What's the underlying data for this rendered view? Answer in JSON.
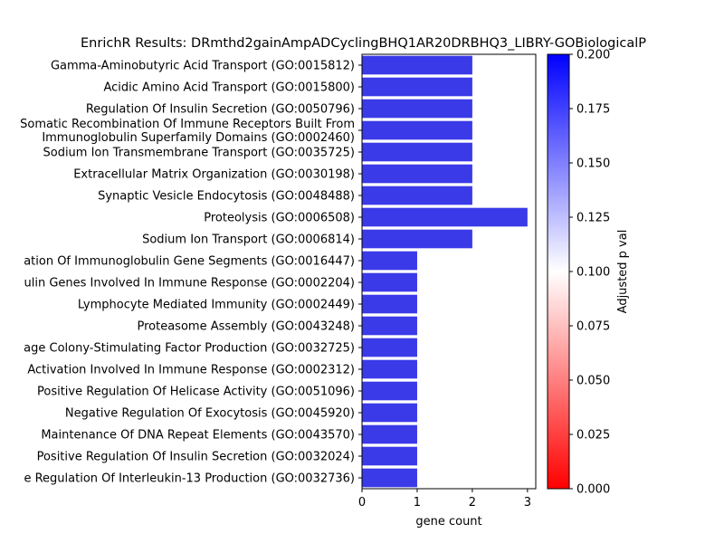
{
  "chart_data": {
    "type": "bar",
    "orientation": "horizontal",
    "title": "EnrichR Results: DRmthd2gainAmpADCyclingBHQ1AR20DRBHQ3_LIBRY-GOBiologicalP",
    "xlabel": "gene count",
    "ylabel": "",
    "xlim": [
      0,
      3.15
    ],
    "xticks": [
      "0",
      "1",
      "2",
      "3"
    ],
    "bar_color": "#3a3ae8",
    "categories": [
      "Gamma-Aminobutyric Acid Transport (GO:0015812)",
      "Acidic Amino Acid Transport (GO:0015800)",
      "Regulation Of Insulin Secretion (GO:0050796)",
      "Somatic Recombination Of Immune Receptors Built From\nImmunoglobulin Superfamily Domains (GO:0002460)",
      "Sodium Ion Transmembrane Transport (GO:0035725)",
      "Extracellular Matrix Organization (GO:0030198)",
      "Synaptic Vesicle Endocytosis (GO:0048488)",
      "Proteolysis (GO:0006508)",
      "Sodium Ion Transport (GO:0006814)",
      "ation Of Immunoglobulin Gene Segments (GO:0016447)",
      "ulin Genes Involved In Immune Response (GO:0002204)",
      "Lymphocyte Mediated Immunity (GO:0002449)",
      "Proteasome Assembly (GO:0043248)",
      "age Colony-Stimulating Factor Production (GO:0032725)",
      "Activation Involved In Immune Response (GO:0002312)",
      "Positive Regulation Of Helicase Activity (GO:0051096)",
      "Negative Regulation Of Exocytosis (GO:0045920)",
      "Maintenance Of DNA Repeat Elements (GO:0043570)",
      "Positive Regulation Of Insulin Secretion (GO:0032024)",
      "e Regulation Of Interleukin-13 Production (GO:0032736)"
    ],
    "values": [
      2,
      2,
      2,
      2,
      2,
      2,
      2,
      3,
      2,
      1,
      1,
      1,
      1,
      1,
      1,
      1,
      1,
      1,
      1,
      1
    ],
    "colorbar": {
      "label": "Adjusted p val",
      "range": [
        0,
        0.2
      ],
      "ticks": [
        "0.000",
        "0.025",
        "0.050",
        "0.075",
        "0.100",
        "0.125",
        "0.150",
        "0.175",
        "0.200"
      ],
      "colors": [
        "#ff0000",
        "#ffffff",
        "#0000ff"
      ]
    },
    "grid": false,
    "legend": "colorbar-right"
  }
}
